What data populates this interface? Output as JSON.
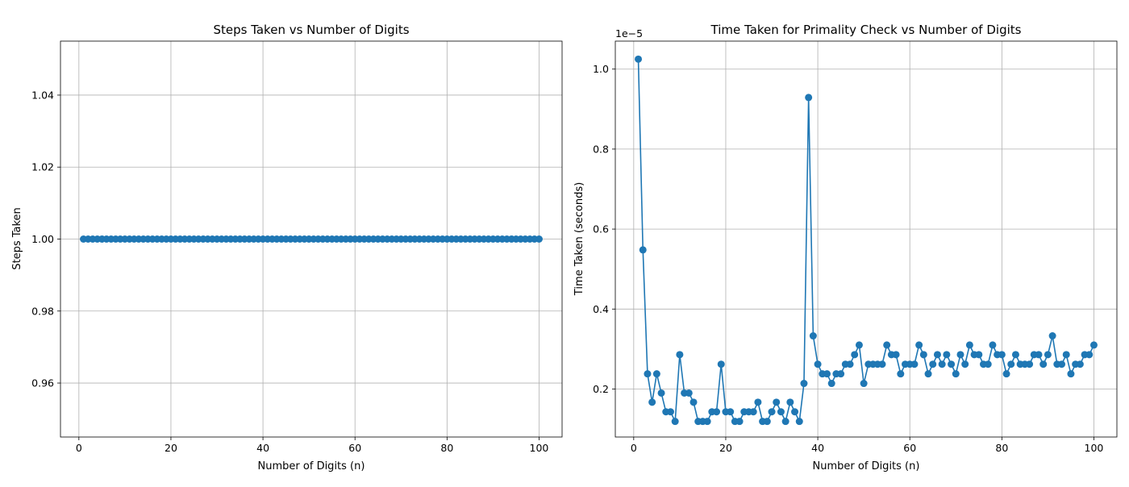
{
  "chart_data": [
    {
      "type": "line",
      "title": "Steps Taken vs Number of Digits",
      "xlabel": "Number of Digits (n)",
      "ylabel": "Steps Taken",
      "xlim": [
        -4,
        105
      ],
      "ylim": [
        0.945,
        1.055
      ],
      "xticks": [
        0,
        20,
        40,
        60,
        80,
        100
      ],
      "yticks": [
        0.96,
        0.98,
        1.0,
        1.02,
        1.04
      ],
      "ytick_labels": [
        "0.96",
        "0.98",
        "1.00",
        "1.02",
        "1.04"
      ],
      "grid": true,
      "marker": "circle",
      "series": [
        {
          "color": "#1f77b4",
          "x_start": 1,
          "x_step": 1,
          "values": [
            1,
            1,
            1,
            1,
            1,
            1,
            1,
            1,
            1,
            1,
            1,
            1,
            1,
            1,
            1,
            1,
            1,
            1,
            1,
            1,
            1,
            1,
            1,
            1,
            1,
            1,
            1,
            1,
            1,
            1,
            1,
            1,
            1,
            1,
            1,
            1,
            1,
            1,
            1,
            1,
            1,
            1,
            1,
            1,
            1,
            1,
            1,
            1,
            1,
            1,
            1,
            1,
            1,
            1,
            1,
            1,
            1,
            1,
            1,
            1,
            1,
            1,
            1,
            1,
            1,
            1,
            1,
            1,
            1,
            1,
            1,
            1,
            1,
            1,
            1,
            1,
            1,
            1,
            1,
            1,
            1,
            1,
            1,
            1,
            1,
            1,
            1,
            1,
            1,
            1,
            1,
            1,
            1,
            1,
            1,
            1,
            1,
            1,
            1,
            1
          ]
        }
      ]
    },
    {
      "type": "line",
      "title": "Time Taken for Primality Check vs Number of Digits",
      "xlabel": "Number of Digits (n)",
      "ylabel": "Time Taken (seconds)",
      "offset_text": "1e−5",
      "scale": 1e-05,
      "xlim": [
        -4,
        105
      ],
      "ylim": [
        0.08,
        1.07
      ],
      "xticks": [
        0,
        20,
        40,
        60,
        80,
        100
      ],
      "yticks": [
        0.2,
        0.4,
        0.6,
        0.8,
        1.0
      ],
      "ytick_labels": [
        "0.2",
        "0.4",
        "0.6",
        "0.8",
        "1.0"
      ],
      "grid": true,
      "marker": "circle",
      "series": [
        {
          "color": "#1f77b4",
          "x_start": 1,
          "x_step": 1,
          "values": [
            1.025,
            0.548,
            0.238,
            0.167,
            0.238,
            0.19,
            0.143,
            0.143,
            0.119,
            0.286,
            0.19,
            0.19,
            0.167,
            0.119,
            0.119,
            0.119,
            0.143,
            0.143,
            0.262,
            0.143,
            0.143,
            0.119,
            0.119,
            0.143,
            0.143,
            0.143,
            0.167,
            0.119,
            0.119,
            0.143,
            0.167,
            0.143,
            0.119,
            0.167,
            0.143,
            0.119,
            0.214,
            0.929,
            0.333,
            0.262,
            0.238,
            0.238,
            0.214,
            0.238,
            0.238,
            0.262,
            0.262,
            0.286,
            0.31,
            0.214,
            0.262,
            0.262,
            0.262,
            0.262,
            0.31,
            0.286,
            0.286,
            0.238,
            0.262,
            0.262,
            0.262,
            0.31,
            0.286,
            0.238,
            0.262,
            0.286,
            0.262,
            0.286,
            0.262,
            0.238,
            0.286,
            0.262,
            0.31,
            0.286,
            0.286,
            0.262,
            0.262,
            0.31,
            0.286,
            0.286,
            0.238,
            0.262,
            0.286,
            0.262,
            0.262,
            0.262,
            0.286,
            0.286,
            0.262,
            0.286,
            0.333,
            0.262,
            0.262,
            0.286,
            0.238,
            0.262,
            0.262,
            0.286,
            0.286,
            0.31
          ]
        }
      ]
    }
  ]
}
